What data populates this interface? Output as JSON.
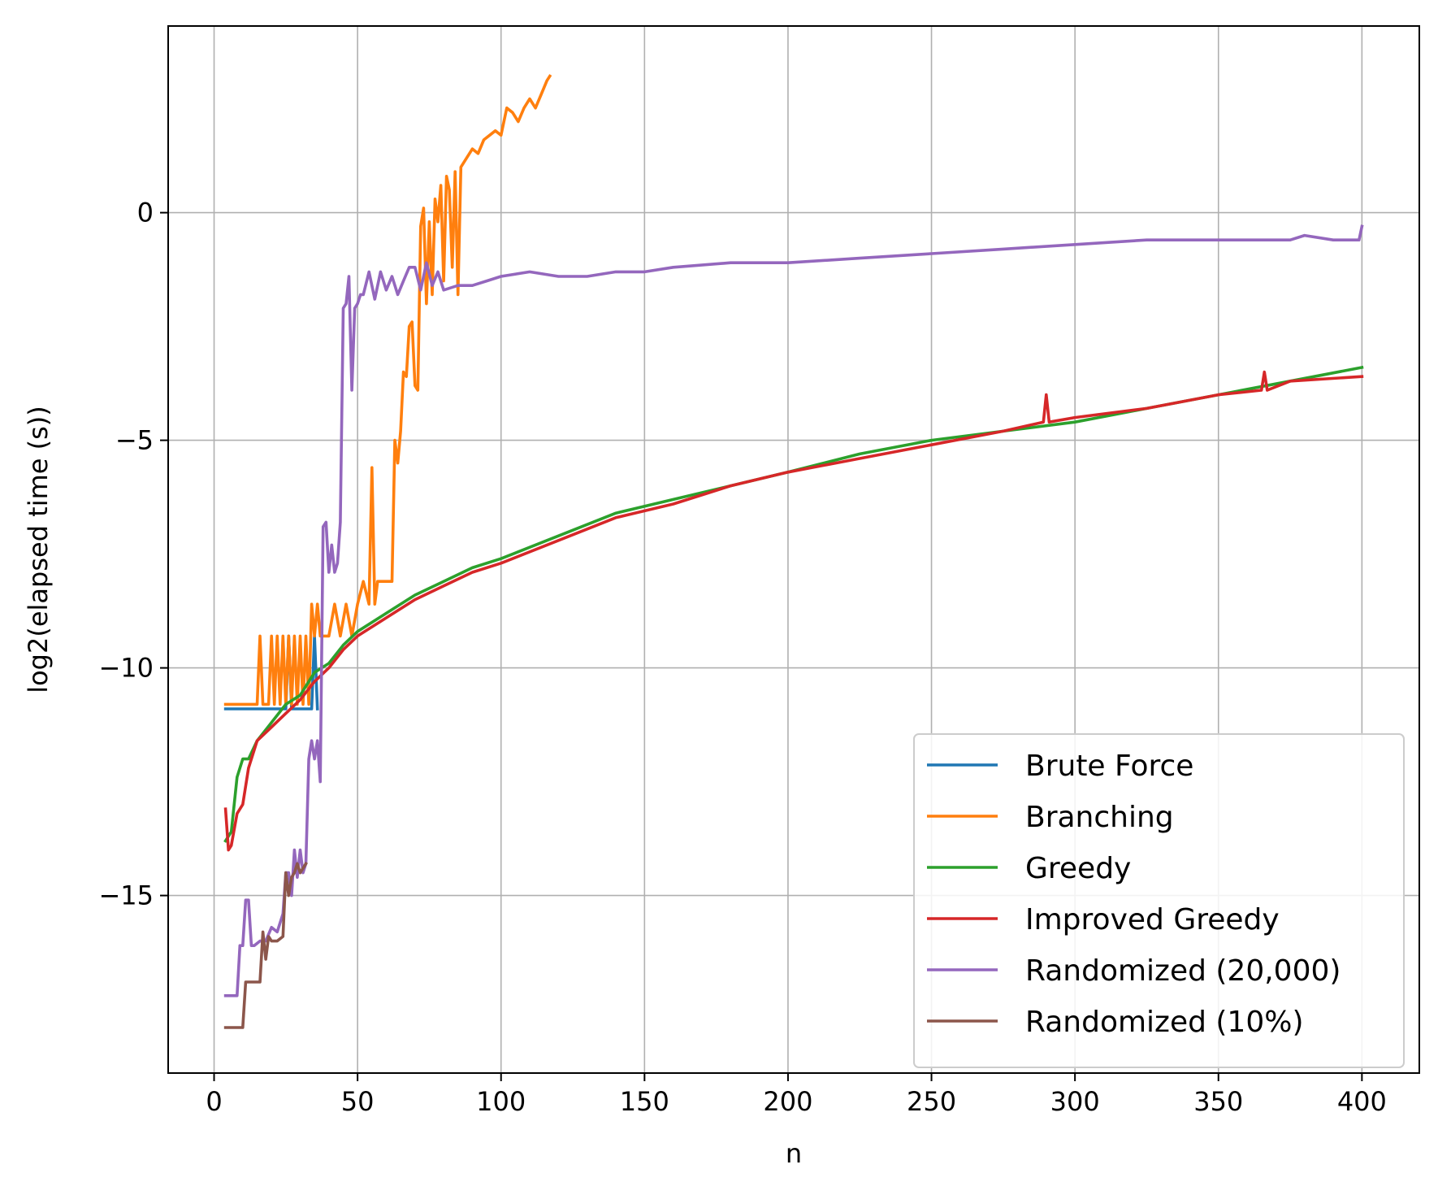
{
  "chart_data": {
    "type": "line",
    "title": "",
    "xlabel": "n",
    "ylabel": "log2(elapsed time (s))",
    "xlim": [
      -16,
      420
    ],
    "ylim": [
      -18.9,
      4.1
    ],
    "xticks": [
      0,
      50,
      100,
      150,
      200,
      250,
      300,
      350,
      400
    ],
    "yticks": [
      0,
      -5,
      -10,
      -15
    ],
    "ytick_labels": [
      "0",
      "−5",
      "−10",
      "−15"
    ],
    "grid": true,
    "legend_position": "lower right",
    "series": [
      {
        "name": "Brute Force",
        "color": "#1f77b4",
        "x": [
          4,
          6,
          8,
          10,
          12,
          14,
          16,
          18,
          20,
          22,
          24,
          25,
          26,
          27,
          28,
          29,
          30,
          31,
          32,
          33,
          34,
          35,
          36
        ],
        "y": [
          -10.9,
          -10.9,
          -10.9,
          -10.9,
          -10.9,
          -10.9,
          -10.9,
          -10.9,
          -10.9,
          -10.9,
          -10.9,
          -10.9,
          -9.3,
          -10.9,
          -10.9,
          -10.9,
          -10.9,
          -10.9,
          -10.9,
          -10.9,
          -10.9,
          -9.3,
          -10.9
        ]
      },
      {
        "name": "Branching",
        "color": "#ff7f0e",
        "x": [
          4,
          8,
          12,
          15,
          16,
          17,
          18,
          19,
          20,
          21,
          22,
          23,
          24,
          25,
          26,
          27,
          28,
          29,
          30,
          31,
          32,
          33,
          34,
          35,
          36,
          37,
          38,
          40,
          42,
          44,
          46,
          48,
          50,
          52,
          54,
          55,
          56,
          57,
          58,
          60,
          62,
          63,
          64,
          65,
          66,
          67,
          68,
          69,
          70,
          71,
          72,
          73,
          74,
          75,
          76,
          77,
          78,
          79,
          80,
          81,
          82,
          83,
          84,
          85,
          86,
          88,
          90,
          92,
          94,
          96,
          98,
          100,
          102,
          104,
          106,
          108,
          110,
          112,
          114,
          116,
          117
        ],
        "y": [
          -10.8,
          -10.8,
          -10.8,
          -10.8,
          -9.3,
          -10.8,
          -10.8,
          -10.8,
          -9.3,
          -10.8,
          -9.3,
          -10.8,
          -9.3,
          -10.8,
          -9.3,
          -10.8,
          -9.3,
          -10.8,
          -9.3,
          -10.8,
          -9.3,
          -10.8,
          -8.6,
          -9.3,
          -8.6,
          -9.3,
          -9.3,
          -9.3,
          -8.6,
          -9.3,
          -8.6,
          -9.3,
          -8.6,
          -8.1,
          -8.6,
          -5.6,
          -8.6,
          -8.1,
          -8.1,
          -8.1,
          -8.1,
          -5.0,
          -5.5,
          -4.8,
          -3.5,
          -3.6,
          -2.5,
          -2.4,
          -3.8,
          -3.9,
          -0.3,
          0.1,
          -2.0,
          -0.2,
          -1.8,
          0.3,
          -0.2,
          0.6,
          -1.5,
          0.8,
          0.5,
          -1.2,
          0.9,
          -1.8,
          1.0,
          1.2,
          1.4,
          1.3,
          1.6,
          1.7,
          1.8,
          1.7,
          2.3,
          2.2,
          2.0,
          2.3,
          2.5,
          2.3,
          2.6,
          2.9,
          3.0
        ]
      },
      {
        "name": "Greedy",
        "color": "#2ca02c",
        "x": [
          4,
          6,
          8,
          10,
          12,
          15,
          20,
          25,
          30,
          35,
          40,
          45,
          50,
          60,
          70,
          80,
          90,
          100,
          120,
          140,
          160,
          180,
          200,
          225,
          250,
          275,
          300,
          325,
          350,
          375,
          400
        ],
        "y": [
          -13.8,
          -13.6,
          -12.4,
          -12.0,
          -12.0,
          -11.6,
          -11.2,
          -10.8,
          -10.6,
          -10.1,
          -9.9,
          -9.5,
          -9.2,
          -8.8,
          -8.4,
          -8.1,
          -7.8,
          -7.6,
          -7.1,
          -6.6,
          -6.3,
          -6.0,
          -5.7,
          -5.3,
          -5.0,
          -4.8,
          -4.6,
          -4.3,
          -4.0,
          -3.7,
          -3.4
        ]
      },
      {
        "name": "Improved Greedy",
        "color": "#d62728",
        "x": [
          4,
          5,
          6,
          8,
          10,
          12,
          15,
          20,
          25,
          30,
          35,
          40,
          45,
          50,
          60,
          70,
          80,
          90,
          100,
          120,
          140,
          160,
          180,
          200,
          225,
          250,
          275,
          289,
          290,
          291,
          300,
          325,
          350,
          365,
          366,
          367,
          375,
          400
        ],
        "y": [
          -13.1,
          -14.0,
          -13.9,
          -13.2,
          -13.0,
          -12.2,
          -11.6,
          -11.3,
          -11.0,
          -10.7,
          -10.3,
          -10.0,
          -9.6,
          -9.3,
          -8.9,
          -8.5,
          -8.2,
          -7.9,
          -7.7,
          -7.2,
          -6.7,
          -6.4,
          -6.0,
          -5.7,
          -5.4,
          -5.1,
          -4.8,
          -4.6,
          -4.0,
          -4.6,
          -4.5,
          -4.3,
          -4.0,
          -3.9,
          -3.5,
          -3.9,
          -3.7,
          -3.6
        ]
      },
      {
        "name": "Randomized (20,000)",
        "color": "#9467bd",
        "x": [
          4,
          6,
          8,
          9,
          10,
          11,
          12,
          13,
          14,
          16,
          18,
          20,
          22,
          24,
          25,
          26,
          27,
          28,
          29,
          30,
          31,
          32,
          33,
          34,
          35,
          36,
          37,
          38,
          39,
          40,
          41,
          42,
          43,
          44,
          45,
          46,
          47,
          48,
          49,
          50,
          51,
          52,
          54,
          56,
          58,
          60,
          62,
          64,
          66,
          68,
          70,
          72,
          74,
          76,
          78,
          80,
          85,
          90,
          95,
          100,
          110,
          120,
          130,
          140,
          150,
          160,
          180,
          200,
          225,
          250,
          275,
          300,
          325,
          350,
          375,
          380,
          390,
          399,
          400
        ],
        "y": [
          -17.2,
          -17.2,
          -17.2,
          -16.1,
          -16.1,
          -15.1,
          -15.1,
          -16.1,
          -16.1,
          -16.0,
          -16.0,
          -15.7,
          -15.8,
          -15.4,
          -14.5,
          -14.5,
          -15.0,
          -14.0,
          -14.6,
          -14.0,
          -14.5,
          -14.3,
          -12.0,
          -11.6,
          -12.0,
          -11.6,
          -12.5,
          -6.9,
          -6.8,
          -7.9,
          -7.3,
          -7.9,
          -7.7,
          -6.8,
          -2.1,
          -2.0,
          -1.4,
          -3.9,
          -2.1,
          -2.0,
          -1.8,
          -1.8,
          -1.3,
          -1.9,
          -1.3,
          -1.7,
          -1.4,
          -1.8,
          -1.5,
          -1.2,
          -1.2,
          -1.7,
          -1.1,
          -1.6,
          -1.3,
          -1.7,
          -1.6,
          -1.6,
          -1.5,
          -1.4,
          -1.3,
          -1.4,
          -1.4,
          -1.3,
          -1.3,
          -1.2,
          -1.1,
          -1.1,
          -1.0,
          -0.9,
          -0.8,
          -0.7,
          -0.6,
          -0.6,
          -0.6,
          -0.5,
          -0.6,
          -0.6,
          -0.3
        ]
      },
      {
        "name": "Randomized (10%)",
        "color": "#8c564b",
        "x": [
          4,
          6,
          8,
          10,
          11,
          12,
          14,
          16,
          17,
          18,
          19,
          20,
          22,
          24,
          25,
          26,
          27,
          28,
          29,
          30,
          31,
          32
        ],
        "y": [
          -17.9,
          -17.9,
          -17.9,
          -17.9,
          -16.9,
          -16.9,
          -16.9,
          -16.9,
          -15.8,
          -16.4,
          -15.9,
          -16.0,
          -16.0,
          -15.9,
          -14.5,
          -15.0,
          -14.6,
          -14.5,
          -14.3,
          -14.5,
          -14.4,
          -14.3
        ]
      }
    ]
  }
}
